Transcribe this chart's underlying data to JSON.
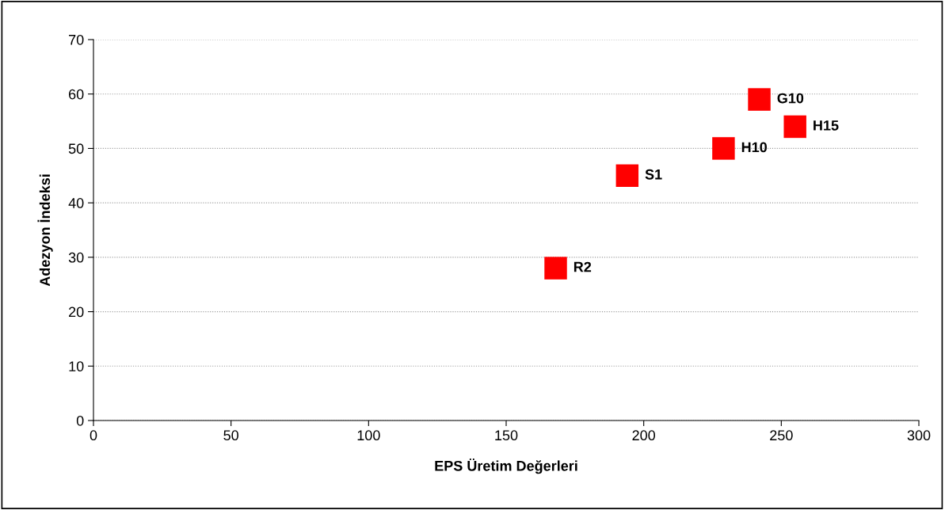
{
  "chart_data": {
    "type": "scatter",
    "xlabel": "EPS Üretim Değerleri",
    "ylabel": "Adezyon İndeksi",
    "x": [
      168,
      194,
      229,
      242,
      255
    ],
    "series": [
      {
        "color": "#ff0000",
        "values": [
          28,
          45,
          50,
          59,
          54
        ]
      }
    ],
    "marker": "square",
    "xlim": [
      0,
      300
    ],
    "xticks": [
      0,
      50,
      100,
      150,
      200,
      250,
      300
    ],
    "ylim": [
      0,
      70
    ],
    "yticks": [
      0,
      10,
      20,
      30,
      40,
      50,
      60,
      70
    ],
    "grid": "y",
    "legend": false,
    "annotations": [
      {
        "text": "R2",
        "x": 168,
        "y": 28
      },
      {
        "text": "S1",
        "x": 194,
        "y": 45
      },
      {
        "text": "H10",
        "x": 229,
        "y": 50
      },
      {
        "text": "G10",
        "x": 242,
        "y": 59
      },
      {
        "text": "H15",
        "x": 255,
        "y": 54
      }
    ]
  }
}
